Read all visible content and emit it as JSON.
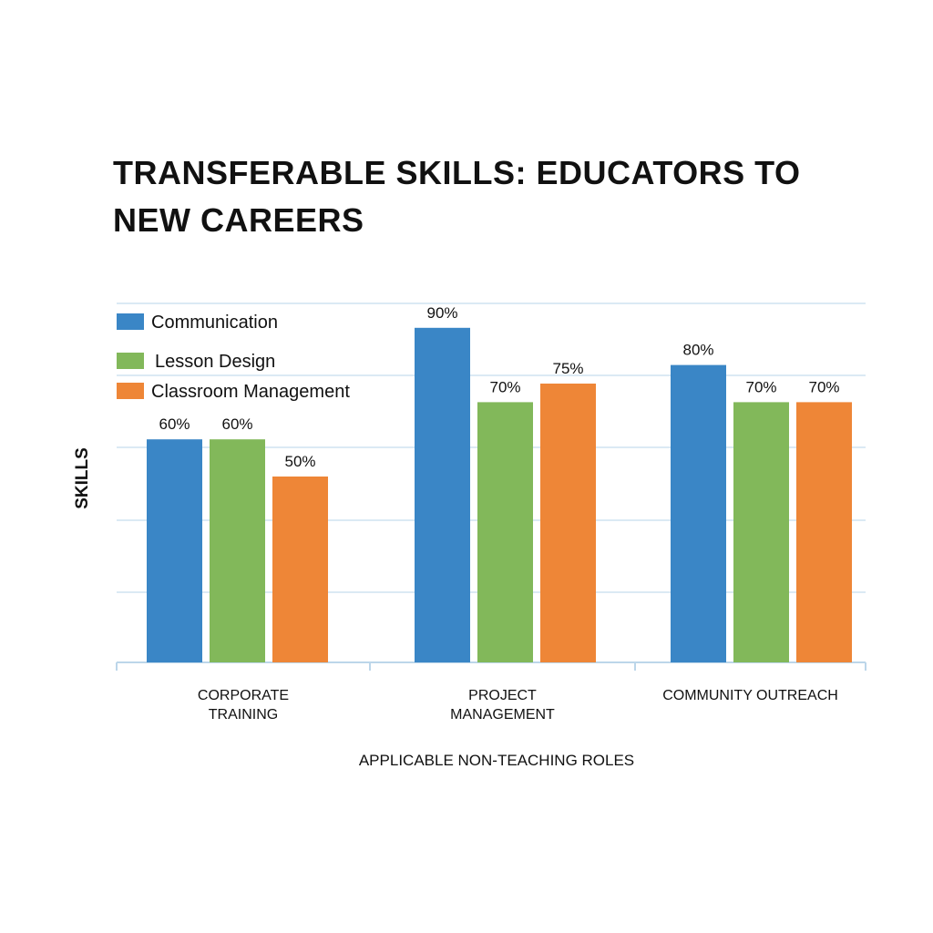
{
  "chart_data": {
    "type": "bar",
    "title": "TRANSFERABLE SKILLS: EDUCATORS TO NEW CAREERS",
    "xlabel": "APPLICABLE NON-TEACHING ROLES",
    "ylabel": "SKILLS",
    "categories": [
      [
        "CORPORATE",
        "TRAINING"
      ],
      [
        "PROJECT",
        "MANAGEMENT"
      ],
      [
        "COMMUNITY OUTREACH"
      ]
    ],
    "series": [
      {
        "name": "Communication",
        "color": "#3a86c6",
        "values": [
          60,
          90,
          80
        ],
        "labels": [
          "60%",
          "90%",
          "80%"
        ]
      },
      {
        "name": "Lesson Design",
        "color": "#82b85a",
        "values": [
          60,
          70,
          70
        ],
        "labels": [
          "60%",
          "70%",
          "70%"
        ]
      },
      {
        "name": "Classroom Management",
        "color": "#ee8637",
        "values": [
          50,
          75,
          70
        ],
        "labels": [
          "50%",
          "75%",
          "70%"
        ]
      }
    ],
    "grid": true,
    "legend_position": "top-left"
  }
}
